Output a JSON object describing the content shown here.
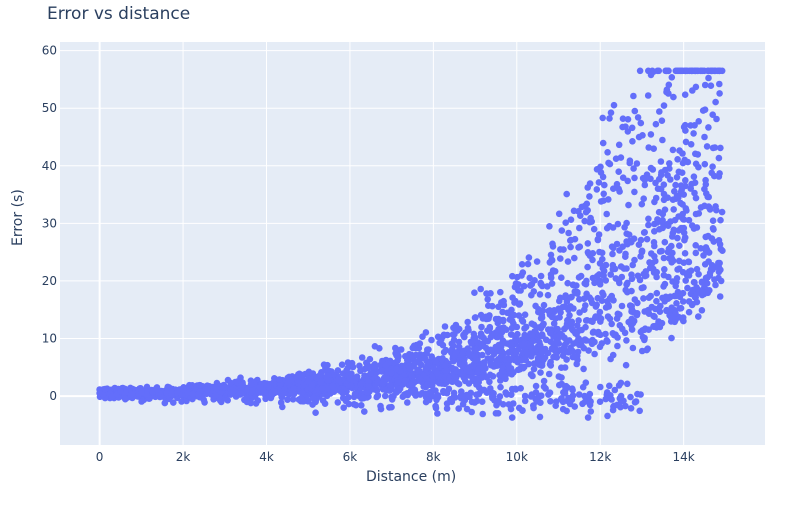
{
  "chart_data": {
    "type": "scatter",
    "title": "Error vs distance",
    "xlabel": "Distance (m)",
    "ylabel": "Error (s)",
    "xlim": [
      -950,
      15950
    ],
    "ylim": [
      -8.5,
      61.5
    ],
    "grid": true,
    "legend": null,
    "marker_color": "#636efa",
    "x_ticks": [
      0,
      2000,
      4000,
      6000,
      8000,
      10000,
      12000,
      14000
    ],
    "x_tick_labels": [
      "0",
      "2k",
      "4k",
      "6k",
      "8k",
      "10k",
      "12k",
      "14k"
    ],
    "y_ticks": [
      0,
      10,
      20,
      30,
      40,
      50,
      60
    ],
    "y_tick_labels": [
      "0",
      "10",
      "20",
      "30",
      "40",
      "50",
      "60"
    ],
    "series": [
      {
        "name": "points",
        "description": "≈3000 points, error grows roughly exponentially with distance; upper band reaches ~56 s at ~14.8k m, lower band stays near 0 until ~13k m",
        "sample_points": [
          {
            "x": 0,
            "y": 0.5
          },
          {
            "x": 500,
            "y": 0.8
          },
          {
            "x": 1000,
            "y": 1.0
          },
          {
            "x": 2000,
            "y": 1.2
          },
          {
            "x": 3000,
            "y": 1.5
          },
          {
            "x": 4000,
            "y": 2.0
          },
          {
            "x": 5000,
            "y": 2.5
          },
          {
            "x": 6000,
            "y": 3.0
          },
          {
            "x": 7000,
            "y": 4.0
          },
          {
            "x": 8000,
            "y": 5.0
          },
          {
            "x": 9000,
            "y": 8.0
          },
          {
            "x": 10000,
            "y": 12.0
          },
          {
            "x": 11000,
            "y": 15.0
          },
          {
            "x": 12000,
            "y": 20.0
          },
          {
            "x": 13000,
            "y": 25.0
          },
          {
            "x": 14000,
            "y": 35.0
          },
          {
            "x": 14500,
            "y": 45.0
          },
          {
            "x": 14850,
            "y": 56.5
          },
          {
            "x": 9500,
            "y": -3.0
          },
          {
            "x": 12500,
            "y": 0.0
          },
          {
            "x": 14900,
            "y": 20.0
          }
        ],
        "upper_envelope": [
          {
            "x": 0,
            "y": 1.5
          },
          {
            "x": 4000,
            "y": 5
          },
          {
            "x": 8000,
            "y": 13
          },
          {
            "x": 10000,
            "y": 21
          },
          {
            "x": 12000,
            "y": 29
          },
          {
            "x": 13000,
            "y": 35
          },
          {
            "x": 14000,
            "y": 45
          },
          {
            "x": 14850,
            "y": 56.5
          }
        ],
        "lower_envelope": [
          {
            "x": 0,
            "y": -0.5
          },
          {
            "x": 4000,
            "y": -1
          },
          {
            "x": 8000,
            "y": -3
          },
          {
            "x": 10000,
            "y": -3.5
          },
          {
            "x": 12000,
            "y": -1
          },
          {
            "x": 13000,
            "y": -1
          },
          {
            "x": 13500,
            "y": 5
          },
          {
            "x": 14500,
            "y": 14
          },
          {
            "x": 14900,
            "y": 19
          }
        ]
      }
    ]
  },
  "render": {
    "seed": 7,
    "count": 3000,
    "marker_radius": 3.3
  }
}
